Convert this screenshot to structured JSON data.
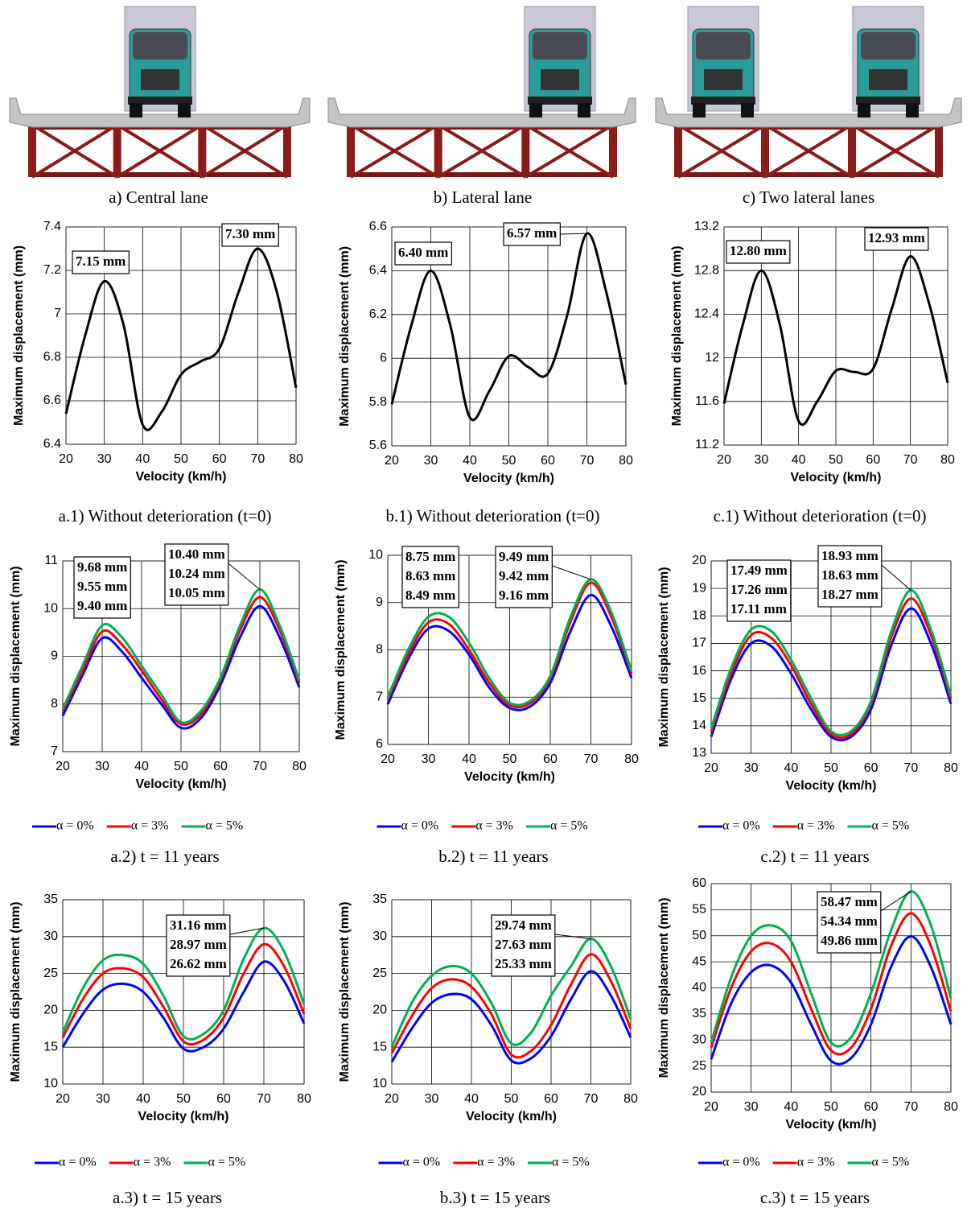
{
  "images": [
    {
      "caption": "a) Central lane"
    },
    {
      "caption": "b) Lateral lane"
    },
    {
      "caption": "c) Two lateral lanes"
    }
  ],
  "chart_data": [
    {
      "type": "line",
      "caption": "a.1) Without deterioration (t=0)",
      "xlabel": "Velocity (km/h)",
      "ylabel": "Maximum displacement (mm)",
      "x": [
        20,
        25,
        30,
        35,
        40,
        45,
        50,
        55,
        60,
        65,
        70,
        75,
        80
      ],
      "xlim": [
        20,
        80
      ],
      "xticks": [
        20,
        30,
        40,
        50,
        60,
        70,
        80
      ],
      "ylim": [
        6.4,
        7.4
      ],
      "yticks": [
        6.4,
        6.6,
        6.8,
        7,
        7.2,
        7.4
      ],
      "grid": true,
      "series": [
        {
          "color": "#000000",
          "values": [
            6.54,
            6.9,
            7.15,
            6.95,
            6.49,
            6.55,
            6.72,
            6.78,
            6.84,
            7.1,
            7.3,
            7.1,
            6.66
          ]
        }
      ],
      "annotations": [
        {
          "lines": [
            {
              "text": "7.15 mm",
              "color": "#000000"
            }
          ]
        },
        {
          "lines": [
            {
              "text": "7.30 mm",
              "color": "#000000"
            }
          ]
        }
      ]
    },
    {
      "type": "line",
      "caption": "b.1) Without deterioration (t=0)",
      "xlabel": "Velocity (km/h)",
      "ylabel": "Maximum displacement (mm)",
      "x": [
        20,
        25,
        30,
        35,
        40,
        45,
        50,
        55,
        60,
        65,
        70,
        75,
        80
      ],
      "xlim": [
        20,
        80
      ],
      "xticks": [
        20,
        30,
        40,
        50,
        60,
        70,
        80
      ],
      "ylim": [
        5.6,
        6.6
      ],
      "yticks": [
        5.6,
        5.8,
        6,
        6.2,
        6.4,
        6.6
      ],
      "grid": true,
      "series": [
        {
          "color": "#000000",
          "values": [
            5.79,
            6.15,
            6.4,
            6.15,
            5.73,
            5.85,
            6.01,
            5.96,
            5.93,
            6.2,
            6.57,
            6.3,
            5.88
          ]
        }
      ],
      "annotations": [
        {
          "lines": [
            {
              "text": "6.40 mm",
              "color": "#000000"
            }
          ]
        },
        {
          "lines": [
            {
              "text": "6.57 mm",
              "color": "#000000"
            }
          ]
        }
      ]
    },
    {
      "type": "line",
      "caption": "c.1) Without deterioration (t=0)",
      "xlabel": "Velocity (km/h)",
      "ylabel": "Maximum displacement (mm)",
      "x": [
        20,
        25,
        30,
        35,
        40,
        45,
        50,
        55,
        60,
        65,
        70,
        75,
        80
      ],
      "xlim": [
        20,
        80
      ],
      "xticks": [
        20,
        30,
        40,
        50,
        60,
        70,
        80
      ],
      "ylim": [
        11.2,
        13.2
      ],
      "yticks": [
        11.2,
        11.6,
        12,
        12.4,
        12.8,
        13.2
      ],
      "grid": true,
      "series": [
        {
          "color": "#000000",
          "values": [
            11.58,
            12.3,
            12.8,
            12.3,
            11.42,
            11.6,
            11.88,
            11.87,
            11.9,
            12.45,
            12.93,
            12.5,
            11.77
          ]
        }
      ],
      "annotations": [
        {
          "lines": [
            {
              "text": "12.80 mm",
              "color": "#000000"
            }
          ]
        },
        {
          "lines": [
            {
              "text": "12.93 mm",
              "color": "#000000"
            }
          ]
        }
      ]
    },
    {
      "type": "line",
      "caption": "a.2) t = 11 years",
      "xlabel": "Velocity (km/h)",
      "ylabel": "Maximum displacement (mm)",
      "x": [
        20,
        25,
        30,
        35,
        40,
        45,
        50,
        55,
        60,
        65,
        70,
        75,
        80
      ],
      "xlim": [
        20,
        80
      ],
      "xticks": [
        20,
        30,
        40,
        50,
        60,
        70,
        80
      ],
      "ylim": [
        7,
        11
      ],
      "yticks": [
        7,
        8,
        9,
        10,
        11
      ],
      "grid": true,
      "series": [
        {
          "name": "α = 0%",
          "color": "#0000ff",
          "values": [
            7.75,
            8.6,
            9.38,
            9.1,
            8.55,
            8.0,
            7.5,
            7.7,
            8.4,
            9.4,
            10.05,
            9.4,
            8.35
          ]
        },
        {
          "name": "α = 3%",
          "color": "#ff0000",
          "values": [
            7.85,
            8.7,
            9.52,
            9.25,
            8.7,
            8.1,
            7.58,
            7.78,
            8.5,
            9.55,
            10.24,
            9.55,
            8.45
          ]
        },
        {
          "name": "α = 5%",
          "color": "#00b050",
          "values": [
            7.9,
            8.8,
            9.65,
            9.4,
            8.8,
            8.2,
            7.62,
            7.85,
            8.55,
            9.65,
            10.4,
            9.65,
            8.5
          ]
        }
      ],
      "annotations": [
        {
          "lines": [
            {
              "text": "9.68 mm",
              "color": "#00b050"
            },
            {
              "text": "9.55 mm",
              "color": "#ff0000"
            },
            {
              "text": "9.40 mm",
              "color": "#3f3fff"
            }
          ]
        },
        {
          "lines": [
            {
              "text": "10.40 mm",
              "color": "#00b050"
            },
            {
              "text": "10.24 mm",
              "color": "#ff0000"
            },
            {
              "text": "10.05 mm",
              "color": "#3f3fff"
            }
          ]
        }
      ]
    },
    {
      "type": "line",
      "caption": "b.2) t = 11 years",
      "xlabel": "Velocity (km/h)",
      "ylabel": "Maximum displacement (mm)",
      "x": [
        20,
        25,
        30,
        35,
        40,
        45,
        50,
        55,
        60,
        65,
        70,
        75,
        80
      ],
      "xlim": [
        20,
        80
      ],
      "xticks": [
        20,
        30,
        40,
        50,
        60,
        70,
        80
      ],
      "ylim": [
        6,
        10
      ],
      "yticks": [
        6,
        7,
        8,
        9,
        10
      ],
      "grid": true,
      "series": [
        {
          "name": "α = 0%",
          "color": "#0000ff",
          "values": [
            6.85,
            7.8,
            8.45,
            8.4,
            7.9,
            7.2,
            6.77,
            6.8,
            7.3,
            8.4,
            9.16,
            8.5,
            7.4
          ]
        },
        {
          "name": "α = 3%",
          "color": "#ff0000",
          "values": [
            6.95,
            7.9,
            8.58,
            8.55,
            8.0,
            7.3,
            6.83,
            6.87,
            7.4,
            8.6,
            9.42,
            8.7,
            7.5
          ]
        },
        {
          "name": "α = 5%",
          "color": "#00b050",
          "values": [
            7.0,
            8.0,
            8.7,
            8.7,
            8.15,
            7.4,
            6.88,
            6.92,
            7.45,
            8.7,
            9.49,
            8.8,
            7.55
          ]
        }
      ],
      "annotations": [
        {
          "lines": [
            {
              "text": "8.75 mm",
              "color": "#00b050"
            },
            {
              "text": "8.63 mm",
              "color": "#ff0000"
            },
            {
              "text": "8.49 mm",
              "color": "#3f3fff"
            }
          ]
        },
        {
          "lines": [
            {
              "text": "9.49 mm",
              "color": "#00b050"
            },
            {
              "text": "9.42 mm",
              "color": "#ff0000"
            },
            {
              "text": "9.16 mm",
              "color": "#3f3fff"
            }
          ]
        }
      ]
    },
    {
      "type": "line",
      "caption": "c.2) t = 11 years",
      "xlabel": "Velocity (km/h)",
      "ylabel": "Maximum displacement (mm)",
      "x": [
        20,
        25,
        30,
        35,
        40,
        45,
        50,
        55,
        60,
        65,
        70,
        75,
        80
      ],
      "xlim": [
        20,
        80
      ],
      "xticks": [
        20,
        30,
        40,
        50,
        60,
        70,
        80
      ],
      "ylim": [
        13,
        20
      ],
      "yticks": [
        13,
        14,
        15,
        16,
        17,
        18,
        19,
        20
      ],
      "grid": true,
      "series": [
        {
          "name": "α = 0%",
          "color": "#0000ff",
          "values": [
            13.6,
            15.7,
            17.0,
            16.9,
            15.9,
            14.6,
            13.6,
            13.6,
            14.6,
            16.9,
            18.27,
            17.0,
            14.8
          ]
        },
        {
          "name": "α = 3%",
          "color": "#ff0000",
          "values": [
            13.8,
            15.9,
            17.3,
            17.2,
            16.2,
            14.8,
            13.7,
            13.7,
            14.8,
            17.2,
            18.63,
            17.3,
            15.0
          ]
        },
        {
          "name": "α = 5%",
          "color": "#00b050",
          "values": [
            13.9,
            16.1,
            17.5,
            17.45,
            16.4,
            15.0,
            13.8,
            13.8,
            14.9,
            17.4,
            18.93,
            17.5,
            15.1
          ]
        }
      ],
      "annotations": [
        {
          "lines": [
            {
              "text": "17.49 mm",
              "color": "#00b050"
            },
            {
              "text": "17.26 mm",
              "color": "#ff0000"
            },
            {
              "text": "17.11 mm",
              "color": "#3f3fff"
            }
          ]
        },
        {
          "lines": [
            {
              "text": "18.93 mm",
              "color": "#00b050"
            },
            {
              "text": "18.63 mm",
              "color": "#ff0000"
            },
            {
              "text": "18.27 mm",
              "color": "#3f3fff"
            }
          ]
        }
      ]
    },
    {
      "type": "line",
      "caption": "a.3) t = 15 years",
      "xlabel": "Velocity (km/h)",
      "ylabel": "Maximum displacement (mm)",
      "x": [
        20,
        25,
        30,
        35,
        40,
        45,
        50,
        55,
        60,
        65,
        70,
        75,
        80
      ],
      "xlim": [
        20,
        80
      ],
      "xticks": [
        20,
        30,
        40,
        50,
        60,
        70,
        80
      ],
      "ylim": [
        10,
        35
      ],
      "yticks": [
        10,
        15,
        20,
        25,
        30,
        35
      ],
      "grid": true,
      "series": [
        {
          "name": "α = 0%",
          "color": "#0000ff",
          "values": [
            15,
            19.5,
            22.8,
            23.6,
            22.5,
            19,
            14.8,
            15,
            17.5,
            22.5,
            26.6,
            24,
            18.2
          ]
        },
        {
          "name": "α = 3%",
          "color": "#ff0000",
          "values": [
            16.3,
            21.5,
            25,
            25.7,
            24.5,
            20.5,
            15.8,
            16,
            19,
            25,
            28.97,
            26,
            19.5
          ]
        },
        {
          "name": "α = 5%",
          "color": "#00b050",
          "values": [
            17,
            23,
            26.8,
            27.5,
            26.3,
            22,
            16.5,
            16.8,
            20,
            27,
            31.16,
            28,
            20.8
          ]
        }
      ],
      "annotations": [
        {
          "lines": [
            {
              "text": "31.16 mm",
              "color": "#00b050"
            },
            {
              "text": "28.97 mm",
              "color": "#ff0000"
            },
            {
              "text": "26.62 mm",
              "color": "#3f3fff"
            }
          ]
        }
      ]
    },
    {
      "type": "line",
      "caption": "b.3) t = 15 years",
      "xlabel": "Velocity (km/h)",
      "ylabel": "Maximum displacement (mm)",
      "x": [
        20,
        25,
        30,
        35,
        40,
        45,
        50,
        55,
        60,
        65,
        70,
        75,
        80
      ],
      "xlim": [
        20,
        80
      ],
      "xticks": [
        20,
        30,
        40,
        50,
        60,
        70,
        80
      ],
      "ylim": [
        10,
        35
      ],
      "yticks": [
        10,
        15,
        20,
        25,
        30,
        35
      ],
      "grid": true,
      "series": [
        {
          "name": "α = 0%",
          "color": "#0000ff",
          "values": [
            13,
            17.5,
            21,
            22.2,
            21.5,
            18,
            13.2,
            13.5,
            16.5,
            21.5,
            25.3,
            22,
            16.3
          ]
        },
        {
          "name": "α = 3%",
          "color": "#ff0000",
          "values": [
            14.2,
            19.2,
            23,
            24.2,
            23.2,
            19.5,
            14,
            14.5,
            18,
            23.5,
            27.6,
            24,
            17.5
          ]
        },
        {
          "name": "α = 5%",
          "color": "#00b050",
          "values": [
            15,
            21,
            24.7,
            26,
            25,
            21,
            15.5,
            17,
            22,
            26,
            29.7,
            26,
            18.8
          ]
        }
      ],
      "annotations": [
        {
          "lines": [
            {
              "text": "29.74 mm",
              "color": "#00b050"
            },
            {
              "text": "27.63 mm",
              "color": "#ff0000"
            },
            {
              "text": "25.33 mm",
              "color": "#3f3fff"
            }
          ]
        }
      ]
    },
    {
      "type": "line",
      "caption": "c.3) t = 15 years",
      "xlabel": "Velocity (km/h)",
      "ylabel": "Maximum displacement (mm)",
      "x": [
        20,
        25,
        30,
        35,
        40,
        45,
        50,
        55,
        60,
        65,
        70,
        75,
        80
      ],
      "xlim": [
        20,
        80
      ],
      "xticks": [
        20,
        30,
        40,
        50,
        60,
        70,
        80
      ],
      "ylim": [
        20,
        60
      ],
      "yticks": [
        20,
        25,
        30,
        35,
        40,
        45,
        50,
        55,
        60
      ],
      "grid": true,
      "series": [
        {
          "name": "α = 0%",
          "color": "#0000ff",
          "values": [
            26.3,
            37,
            43,
            44.3,
            41,
            33,
            26,
            26.5,
            33,
            44,
            49.9,
            44,
            33
          ]
        },
        {
          "name": "α = 3%",
          "color": "#ff0000",
          "values": [
            28.5,
            40,
            47,
            48.5,
            45,
            36,
            28,
            28.5,
            36,
            48,
            54.3,
            48,
            35.5
          ]
        },
        {
          "name": "α = 5%",
          "color": "#00b050",
          "values": [
            29.5,
            42,
            50,
            52,
            49,
            39,
            29.5,
            30.5,
            39,
            51,
            58.5,
            52,
            38
          ]
        }
      ],
      "annotations": [
        {
          "lines": [
            {
              "text": "58.47 mm",
              "color": "#00b050"
            },
            {
              "text": "54.34 mm",
              "color": "#ff0000"
            },
            {
              "text": "49.86 mm",
              "color": "#3f3fff"
            }
          ]
        }
      ]
    }
  ]
}
